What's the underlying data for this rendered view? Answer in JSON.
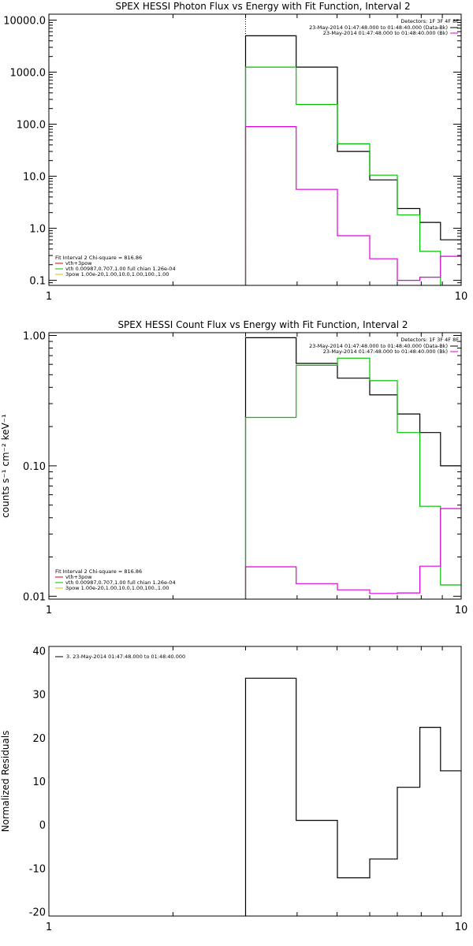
{
  "chart_data": [
    {
      "type": "line",
      "title": "SPEX HESSI Photon Flux vs Energy with Fit Function, Interval 2",
      "xlabel": "",
      "ylabel": "",
      "x_scale": "log",
      "y_scale": "log",
      "xlim": [
        1,
        10
      ],
      "ylim": [
        0.08,
        13000
      ],
      "x_tick_labels": [
        "1",
        "10"
      ],
      "y_tick_values": [
        0.1,
        1,
        10,
        100,
        1000,
        10000
      ],
      "y_tick_labels": [
        "0.1",
        "1.0",
        "10.0",
        "100.0",
        "1000.0",
        "10000.0"
      ],
      "vline_x": 3.0,
      "legend_right": {
        "detectors": "Detectors: 1F 3F 4F 8F",
        "entries": [
          {
            "label": "23-May-2014 01:47:48.000 to 01:48:40.000 (Data-Bk)",
            "color": "#000000"
          },
          {
            "label": "23-May-2014 01:47:48.000 to 01:48:40.000 (Bk)",
            "color": "#e000e0"
          }
        ]
      },
      "legend_left": {
        "header": "Fit Interval 2   Chi-square = 816.86",
        "entries": [
          {
            "label": "vth+3pow",
            "color": "#e00000"
          },
          {
            "label": "vth 0.00987,0.707,1.00   full chian 1.26e-04",
            "color": "#00c000"
          },
          {
            "label": "3pow 1.00e-20,1.00,10.0,1.00,100.,1.00",
            "color": "#d8c000"
          }
        ]
      },
      "edges": [
        3.0,
        3.98,
        5.01,
        6.0,
        7.0,
        7.94,
        8.91,
        10.0
      ],
      "series": [
        {
          "color": "#000000",
          "values": [
            5000,
            1250,
            30,
            8.5,
            2.4,
            1.3,
            0.6
          ]
        },
        {
          "color": "#00c000",
          "values": [
            1250,
            240,
            42,
            10.5,
            1.8,
            0.36,
            0.08
          ]
        },
        {
          "color": "#e000e0",
          "values": [
            90,
            5.6,
            0.72,
            0.26,
            0.1,
            0.115,
            0.29
          ]
        }
      ]
    },
    {
      "type": "line",
      "title": "SPEX HESSI Count Flux vs Energy with Fit Function, Interval 2",
      "xlabel": "",
      "ylabel": "counts s⁻¹ cm⁻² keV⁻¹",
      "x_scale": "log",
      "y_scale": "log",
      "xlim": [
        1,
        10
      ],
      "ylim": [
        0.0095,
        1.05
      ],
      "x_tick_labels": [
        "1",
        "10"
      ],
      "y_tick_values": [
        0.01,
        0.1,
        1.0
      ],
      "y_tick_labels": [
        "0.01",
        "0.10",
        "1.00"
      ],
      "vline_x": 3.0,
      "legend_right": {
        "detectors": "Detectors: 1F 3F 4F 8F",
        "entries": [
          {
            "label": "23-May-2014 01:47:48.000 to 01:48:40.000 (Data-Bk)",
            "color": "#000000"
          },
          {
            "label": "23-May-2014 01:47:48.000 to 01:48:40.000 (Bk)",
            "color": "#e000e0"
          }
        ]
      },
      "legend_left": {
        "header": "Fit Interval 2   Chi-square = 816.86",
        "entries": [
          {
            "label": "vth+3pow",
            "color": "#e00000"
          },
          {
            "label": "vth 0.00987,0.707,1.00   full chian 1.26e-04",
            "color": "#00c000"
          },
          {
            "label": "3pow 1.00e-20,1.00,10.0,1.00,100.,1.00",
            "color": "#d8c000"
          }
        ]
      },
      "edges": [
        3.0,
        3.98,
        5.01,
        6.0,
        7.0,
        7.94,
        8.91,
        10.0
      ],
      "series": [
        {
          "color": "#000000",
          "values": [
            0.96,
            0.61,
            0.47,
            0.35,
            0.25,
            0.18,
            0.1
          ]
        },
        {
          "color": "#00c000",
          "values": [
            0.235,
            0.59,
            0.67,
            0.45,
            0.18,
            0.049,
            0.0122
          ]
        },
        {
          "color": "#e000e0",
          "values": [
            0.0168,
            0.0125,
            0.0112,
            0.0105,
            0.0106,
            0.017,
            0.047
          ]
        }
      ]
    },
    {
      "type": "line",
      "title": "",
      "xlabel": "",
      "ylabel": "Normalized Residuals",
      "x_scale": "log",
      "y_scale": "linear",
      "xlim": [
        1,
        10
      ],
      "ylim": [
        -21,
        41
      ],
      "x_tick_labels": [
        "1",
        "10"
      ],
      "y_tick_values": [
        -20,
        -10,
        0,
        10,
        20,
        30,
        40
      ],
      "y_tick_labels": [
        "-20",
        "-10",
        "0",
        "10",
        "20",
        "30",
        "40"
      ],
      "vline_x": null,
      "legend_right": null,
      "legend_left": null,
      "legend_top": {
        "label": "3. 23-May-2014 01:47:48.000 to 01:48:40.000",
        "color": "#000000"
      },
      "edges": [
        3.0,
        3.98,
        5.01,
        6.0,
        7.0,
        7.94,
        8.91,
        10.0
      ],
      "series": [
        {
          "color": "#000000",
          "values": [
            33.7,
            1.0,
            -12.2,
            -7.9,
            8.6,
            22.4,
            12.4
          ]
        }
      ]
    }
  ]
}
